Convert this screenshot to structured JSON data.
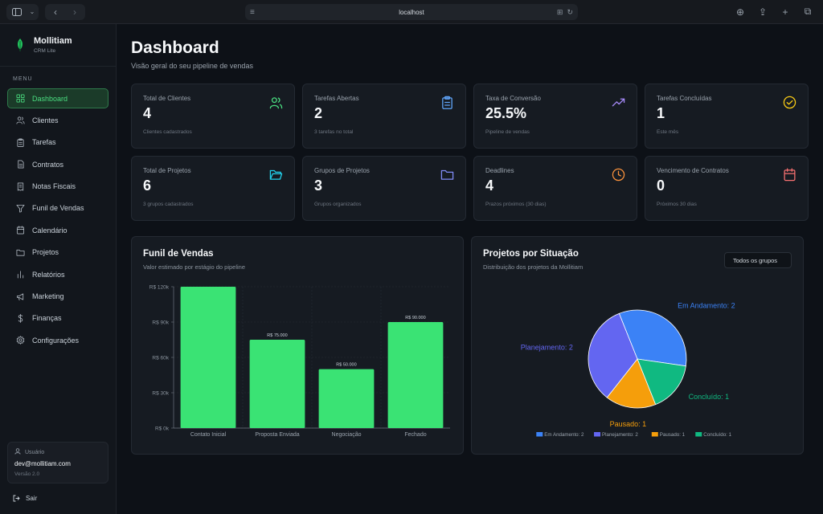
{
  "browser": {
    "url": "localhost"
  },
  "brand": {
    "name": "Mollitiam",
    "subtitle": "CRM Lite"
  },
  "menu_title": "MENU",
  "nav": [
    {
      "label": "Dashboard",
      "icon": "grid-icon",
      "active": true
    },
    {
      "label": "Clientes",
      "icon": "users-icon"
    },
    {
      "label": "Tarefas",
      "icon": "clipboard-icon"
    },
    {
      "label": "Contratos",
      "icon": "file-icon"
    },
    {
      "label": "Notas Fiscais",
      "icon": "receipt-icon"
    },
    {
      "label": "Funil de Vendas",
      "icon": "filter-icon"
    },
    {
      "label": "Calendário",
      "icon": "calendar-icon"
    },
    {
      "label": "Projetos",
      "icon": "folder-icon"
    },
    {
      "label": "Relatórios",
      "icon": "bar-chart-icon"
    },
    {
      "label": "Marketing",
      "icon": "megaphone-icon"
    },
    {
      "label": "Finanças",
      "icon": "dollar-icon"
    },
    {
      "label": "Configurações",
      "icon": "gear-icon"
    }
  ],
  "user": {
    "label": "Usuário",
    "email": "dev@mollitiam.com",
    "version": "Versão 2.0"
  },
  "logout": "Sair",
  "header": {
    "title": "Dashboard",
    "subtitle": "Visão geral do seu pipeline de vendas"
  },
  "cards": [
    {
      "label": "Total de Clientes",
      "value": "4",
      "sub": "Clientes cadastrados",
      "icon": "users-icon",
      "color": "#4ade80"
    },
    {
      "label": "Tarefas Abertas",
      "value": "2",
      "sub": "3 tarefas no total",
      "icon": "clipboard-icon",
      "color": "#60a5fa"
    },
    {
      "label": "Taxa de Conversão",
      "value": "25.5%",
      "sub": "Pipeline de vendas",
      "icon": "trending-up-icon",
      "color": "#a78bfa"
    },
    {
      "label": "Tarefas Concluídas",
      "value": "1",
      "sub": "Este mês",
      "icon": "check-circle-icon",
      "color": "#facc15"
    },
    {
      "label": "Total de Projetos",
      "value": "6",
      "sub": "3 grupos cadastrados",
      "icon": "folder-open-icon",
      "color": "#22d3ee"
    },
    {
      "label": "Grupos de Projetos",
      "value": "3",
      "sub": "Grupos organizados",
      "icon": "folder-icon",
      "color": "#818cf8"
    },
    {
      "label": "Deadlines",
      "value": "4",
      "sub": "Prazos próximos (30 dias)",
      "icon": "clock-icon",
      "color": "#fb923c"
    },
    {
      "label": "Vencimento de Contratos",
      "value": "0",
      "sub": "Próximos 30 dias",
      "icon": "calendar-icon",
      "color": "#f87171"
    }
  ],
  "funnel_panel": {
    "title": "Funil de Vendas",
    "subtitle": "Valor estimado por estágio do pipeline"
  },
  "pie_panel": {
    "title": "Projetos por Situação",
    "subtitle": "Distribuição dos projetos da Mollitiam",
    "filter": "Todos os grupos"
  },
  "chart_data": [
    {
      "type": "bar",
      "categories": [
        "Contato Inicial",
        "Proposta Enviada",
        "Negociação",
        "Fechado"
      ],
      "values": [
        120000,
        75000,
        50000,
        90000
      ],
      "data_labels": [
        "",
        "R$ 75.000",
        "R$ 50.000",
        "R$ 90.000"
      ],
      "yticks": [
        "R$ 0k",
        "R$ 30k",
        "R$ 60k",
        "R$ 90k",
        "R$ 120k"
      ],
      "ylim": [
        0,
        120000
      ],
      "color": "#3ae374"
    },
    {
      "type": "pie",
      "slices": [
        {
          "label": "Em Andamento: 2",
          "value": 2,
          "color": "#3b82f6"
        },
        {
          "label": "Concluído: 1",
          "value": 1,
          "color": "#10b981"
        },
        {
          "label": "Pausado: 1",
          "value": 1,
          "color": "#f59e0b"
        },
        {
          "label": "Planejamento: 2",
          "value": 2,
          "color": "#6366f1"
        }
      ],
      "legend": [
        "Em Andamento: 2",
        "Planejamento: 2",
        "Pausado: 1",
        "Concluído: 1"
      ],
      "legend_colors": [
        "#3b82f6",
        "#6366f1",
        "#f59e0b",
        "#10b981"
      ]
    }
  ]
}
